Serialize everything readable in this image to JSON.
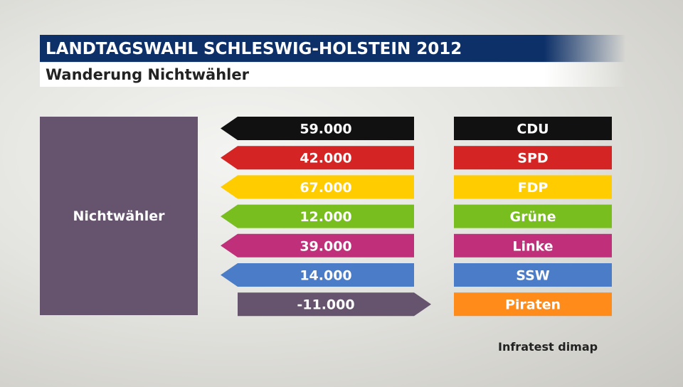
{
  "header": {
    "title": "LANDTAGSWAHL SCHLESWIG-HOLSTEIN 2012",
    "subtitle": "Wanderung Nichtwähler"
  },
  "source_label": "Nichtwähler",
  "credit": "Infratest dimap",
  "chart_data": {
    "type": "bar",
    "title": "LANDTAGSWAHL SCHLESWIG-HOLSTEIN 2012",
    "subtitle": "Wanderung Nichtwähler",
    "source": "Nichtwähler",
    "categories": [
      "CDU",
      "SPD",
      "FDP",
      "Grüne",
      "Linke",
      "SSW",
      "Piraten"
    ],
    "values": [
      59000,
      42000,
      67000,
      12000,
      39000,
      14000,
      -11000
    ],
    "value_labels": [
      "59.000",
      "42.000",
      "67.000",
      "12.000",
      "39.000",
      "14.000",
      "-11.000"
    ],
    "colors": [
      "#111111",
      "#d52424",
      "#ffcc00",
      "#78be1e",
      "#c0307a",
      "#4a7cc8",
      "#ff8c1a"
    ],
    "negative_color": "#66536e",
    "source_color": "#66536e"
  }
}
